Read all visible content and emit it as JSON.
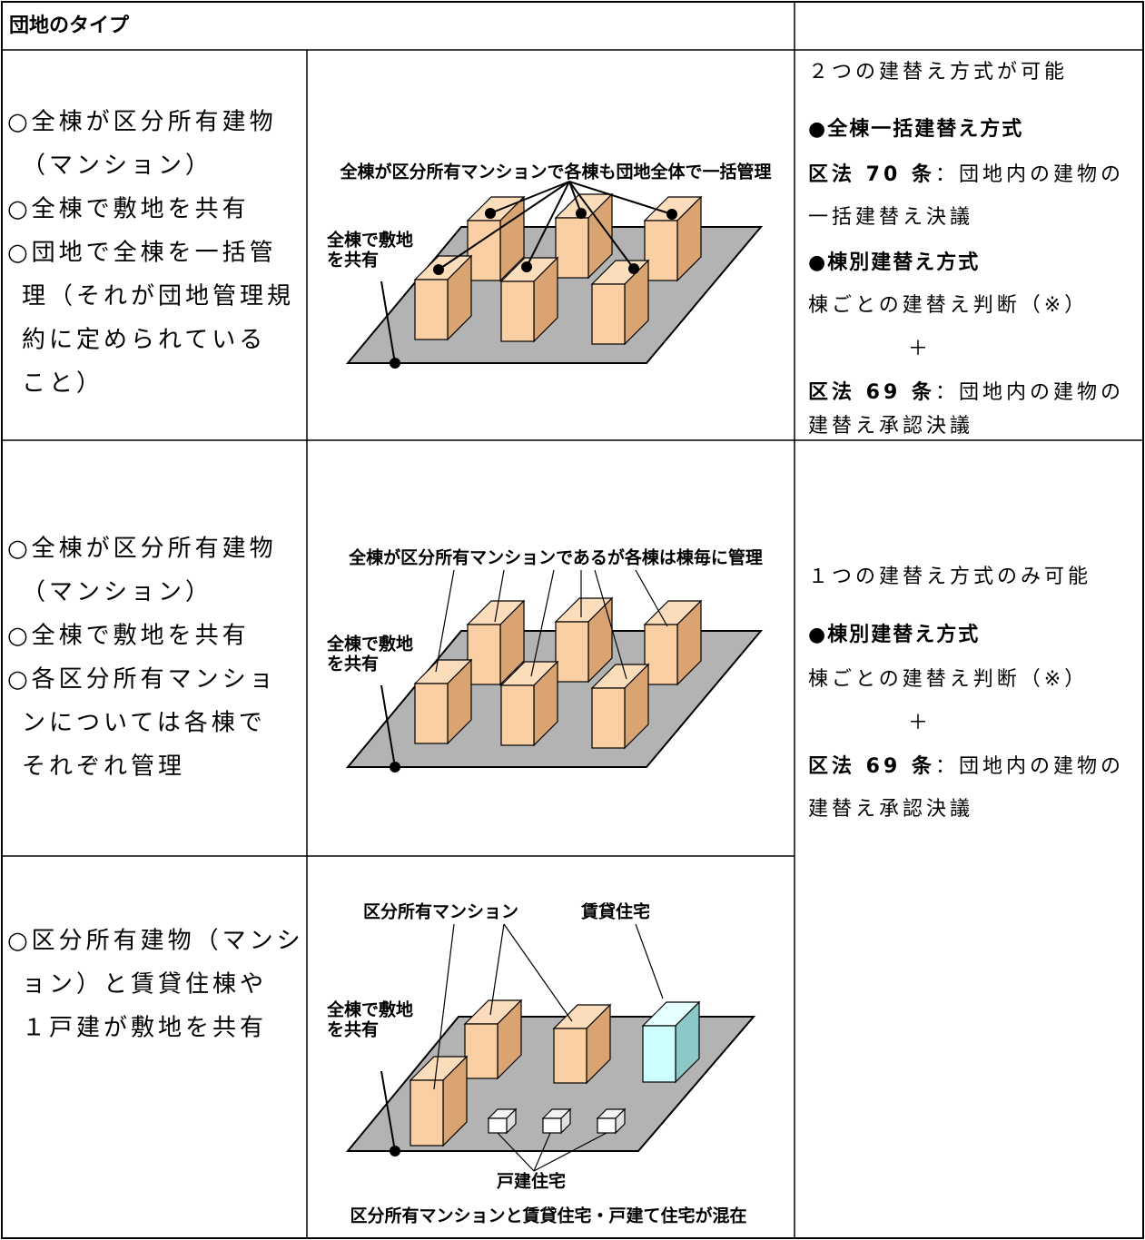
{
  "header": {
    "title": "団地のタイプ"
  },
  "rows": [
    {
      "conditions": [
        "○全棟が区分所有建物",
        "（マンション）",
        "○全棟で敷地を共有",
        "○団地で全棟を一括管",
        "理（それが団地管理規",
        "約に定められている",
        "こと）"
      ],
      "diagram": {
        "caption": "全棟が区分所有マンションで各棟も団地全体で一括管理",
        "site_label": [
          "全棟で敷地",
          "を共有"
        ]
      }
    },
    {
      "conditions": [
        "○全棟が区分所有建物",
        "（マンション）",
        "○全棟で敷地を共有",
        "○各区分所有マンショ",
        "ンについては各棟で",
        "それぞれ管理"
      ],
      "diagram": {
        "caption": "全棟が区分所有マンションであるが各棟は棟毎に管理",
        "site_label": [
          "全棟で敷地",
          "を共有"
        ]
      }
    },
    {
      "conditions": [
        "○区分所有建物（マンシ",
        "ョン）と賃貸住棟や",
        "１戸建が敷地を共有"
      ],
      "diagram": {
        "mansion_label": "区分所有マンション",
        "rental_label": "賃貸住宅",
        "site_label": [
          "全棟で敷地",
          "を共有"
        ],
        "detached_label": "戸建住宅",
        "caption": "区分所有マンションと賃貸住宅・戸建て住宅が混在"
      }
    }
  ],
  "methods": [
    {
      "lines": [
        {
          "text": "２つの建替え方式が可能"
        },
        {
          "bold": "●全棟一括建替え方式"
        },
        {
          "bold": "区法 70 条",
          "text": "：団地内の建物の"
        },
        {
          "text": "一括建替え決議"
        },
        {
          "bold": "●棟別建替え方式"
        },
        {
          "text": "棟ごとの建替え判断（※）"
        },
        {
          "text": "＋"
        },
        {
          "bold": "区法 69 条",
          "text": "：団地内の建物の"
        },
        {
          "text": "建替え承認決議"
        }
      ]
    },
    {
      "lines": [
        {
          "text": "１つの建替え方式のみ可能"
        },
        {
          "bold": "●棟別建替え方式"
        },
        {
          "text": "棟ごとの建替え判断（※）"
        },
        {
          "text": "＋"
        },
        {
          "bold": "区法 69 条",
          "text": "：団地内の建物の"
        },
        {
          "text": "建替え承認決議"
        }
      ]
    }
  ]
}
